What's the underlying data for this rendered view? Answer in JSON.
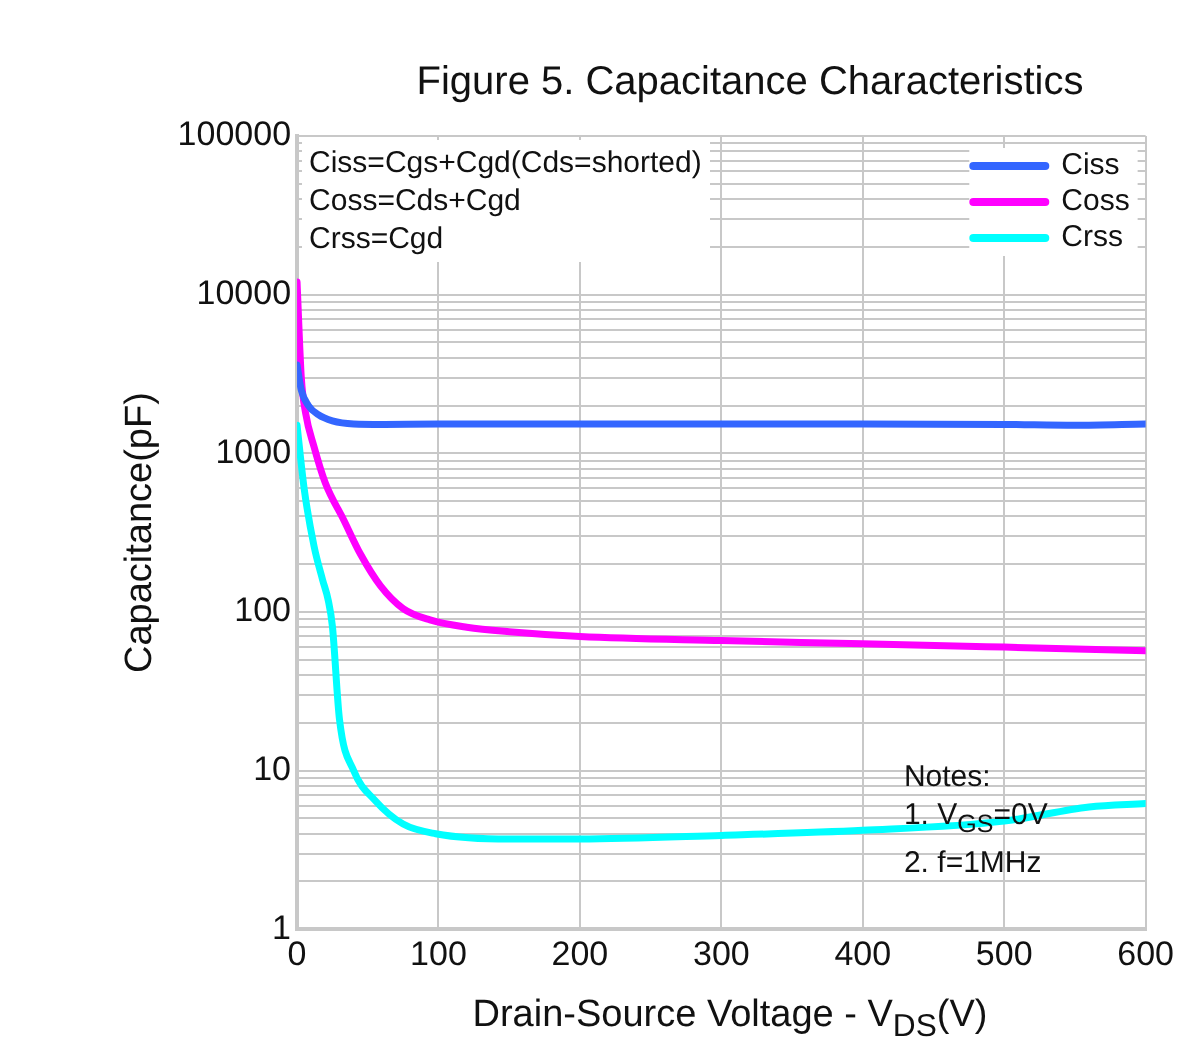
{
  "chart_data": {
    "type": "line",
    "title": "Figure 5. Capacitance Characteristics",
    "xlabel": "Drain-Source Voltage - V$_{DS}$(V)",
    "ylabel": "Capacitance(pF)",
    "annotations": [
      "Ciss=Cgs+Cgd(Cds=shorted)",
      "Coss=Cds+Cgd",
      "Crss=Cgd",
      "Notes:",
      "1. V$_{GS}$=0V",
      "2. f=1MHz"
    ],
    "xlim": [
      0,
      600
    ],
    "xticks": [
      0,
      100,
      200,
      300,
      400,
      500,
      600
    ],
    "ylim": [
      1,
      100000
    ],
    "yticks": [
      1,
      {
        "value": 2,
        "label": null
      },
      {
        "value": 3,
        "label": null
      },
      {
        "value": 4,
        "label": null
      },
      {
        "value": 5,
        "label": null
      },
      {
        "value": 6,
        "label": null
      },
      {
        "value": 7,
        "label": null
      },
      {
        "value": 8,
        "label": null
      },
      {
        "value": 9,
        "label": null
      },
      10,
      {
        "value": 20,
        "label": null
      },
      {
        "value": 30,
        "label": null
      },
      {
        "value": 40,
        "label": null
      },
      {
        "value": 50,
        "label": null
      },
      {
        "value": 60,
        "label": null
      },
      {
        "value": 70,
        "label": null
      },
      {
        "value": 80,
        "label": null
      },
      {
        "value": 90,
        "label": null
      },
      100,
      {
        "value": 200,
        "label": null
      },
      {
        "value": 300,
        "label": null
      },
      {
        "value": 400,
        "label": null
      },
      {
        "value": 500,
        "label": null
      },
      {
        "value": 600,
        "label": null
      },
      {
        "value": 700,
        "label": null
      },
      {
        "value": 800,
        "label": null
      },
      {
        "value": 900,
        "label": null
      },
      1000,
      {
        "value": 2000,
        "label": null
      },
      {
        "value": 3000,
        "label": null
      },
      {
        "value": 4000,
        "label": null
      },
      {
        "value": 5000,
        "label": null
      },
      {
        "value": 6000,
        "label": null
      },
      {
        "value": 7000,
        "label": null
      },
      {
        "value": 8000,
        "label": null
      },
      {
        "value": 9000,
        "label": null
      },
      10000,
      {
        "value": 20000,
        "label": null
      },
      {
        "value": 30000,
        "label": null
      },
      {
        "value": 40000,
        "label": null
      },
      {
        "value": 50000,
        "label": null
      },
      {
        "value": 60000,
        "label": null
      },
      {
        "value": 70000,
        "label": null
      },
      {
        "value": 80000,
        "label": null
      },
      {
        "value": 90000,
        "label": null
      },
      100000
    ],
    "log": "y",
    "grid": true,
    "legend": "top right",
    "marker": "none",
    "line_style": "solid",
    "series": [
      {
        "name": "Ciss",
        "color": "#3366ff",
        "x": [
          0,
          3,
          8,
          15,
          25,
          40,
          60,
          100,
          200,
          300,
          400,
          500,
          550,
          600
        ],
        "values": [
          3600,
          2500,
          2000,
          1750,
          1600,
          1530,
          1520,
          1530,
          1530,
          1530,
          1530,
          1520,
          1500,
          1530
        ]
      },
      {
        "name": "Coss",
        "color": "#ff00ff",
        "x": [
          0,
          3,
          6,
          12,
          20,
          33,
          45,
          59,
          75,
          94,
          120,
          150,
          200,
          300,
          400,
          500,
          600
        ],
        "values": [
          12000,
          3000,
          1800,
          1100,
          650,
          380,
          230,
          146,
          105,
          89,
          80,
          75,
          70,
          66,
          63,
          60,
          57
        ]
      },
      {
        "name": "Crss",
        "color": "#00ffff",
        "x": [
          0,
          5,
          12,
          18,
          22,
          25,
          30,
          40,
          55,
          75,
          98,
          150,
          200,
          300,
          400,
          500,
          560,
          600
        ],
        "values": [
          1500,
          600,
          260,
          160,
          119,
          81,
          21,
          10,
          6.5,
          4.6,
          4,
          3.7,
          3.7,
          3.9,
          4.2,
          4.8,
          5.9,
          6.2
        ]
      }
    ]
  }
}
